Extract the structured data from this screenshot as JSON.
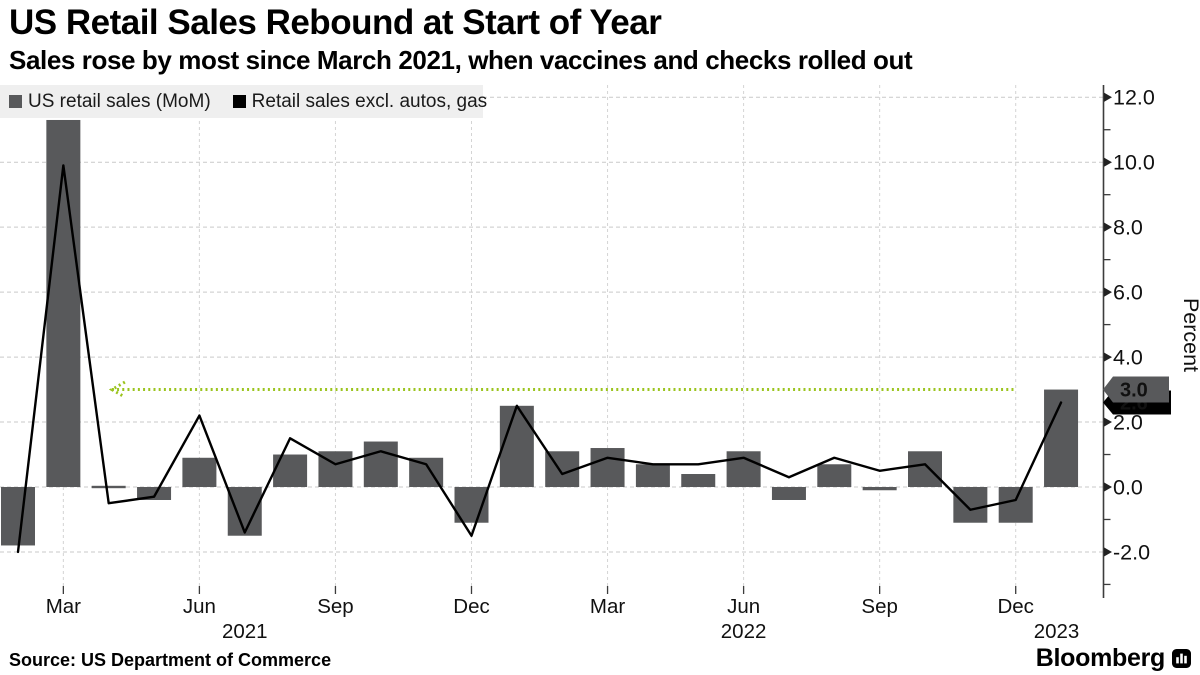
{
  "header": {
    "title": "US Retail Sales Rebound at Start of Year",
    "subtitle": "Sales rose by most since March 2021, when vaccines and checks rolled out"
  },
  "source": {
    "text": "Source: US Department of Commerce"
  },
  "brand": {
    "name": "Bloomberg"
  },
  "chart_data": {
    "type": "combo",
    "title": "US Retail Sales Rebound at Start of Year",
    "subtitle": "Sales rose by most since March 2021, when vaccines and checks rolled out",
    "x": [
      "Feb 2021",
      "Mar 2021",
      "Apr 2021",
      "May 2021",
      "Jun 2021",
      "Jul 2021",
      "Aug 2021",
      "Sep 2021",
      "Oct 2021",
      "Nov 2021",
      "Dec 2021",
      "Jan 2022",
      "Feb 2022",
      "Mar 2022",
      "Apr 2022",
      "May 2022",
      "Jun 2022",
      "Jul 2022",
      "Aug 2022",
      "Sep 2022",
      "Oct 2022",
      "Nov 2022",
      "Dec 2022",
      "Jan 2023"
    ],
    "series": [
      {
        "name": "US retail sales (MoM)",
        "type": "bar",
        "color": "#58595b",
        "values": [
          -1.8,
          11.3,
          0.0,
          -0.4,
          0.9,
          -1.5,
          1.0,
          1.1,
          1.4,
          0.9,
          -1.1,
          2.5,
          1.1,
          1.2,
          0.7,
          0.4,
          1.1,
          -0.4,
          0.7,
          -0.1,
          1.1,
          -1.1,
          -1.1,
          3.0
        ]
      },
      {
        "name": "Retail sales excl. autos, gas",
        "type": "line",
        "color": "#000000",
        "values": [
          -2.0,
          9.9,
          -0.5,
          -0.3,
          2.2,
          -1.4,
          1.5,
          0.7,
          1.1,
          0.7,
          -1.5,
          2.5,
          0.4,
          0.9,
          0.7,
          0.7,
          0.9,
          0.3,
          0.9,
          0.5,
          0.7,
          -0.7,
          -0.4,
          2.6
        ]
      }
    ],
    "ylabel": "Percent",
    "ylim": [
      -3.2,
      12.4
    ],
    "grid": true,
    "legend_position": "top-left",
    "y_axis": {
      "major": [
        {
          "value": -2,
          "label": "-2.0"
        },
        {
          "value": 0,
          "label": "0.0"
        },
        {
          "value": 2,
          "label": "2.0"
        },
        {
          "value": 4,
          "label": "4.0"
        },
        {
          "value": 6,
          "label": "6.0"
        },
        {
          "value": 8,
          "label": "8.0"
        },
        {
          "value": 10,
          "label": "10.0"
        },
        {
          "value": 12,
          "label": "12.0"
        }
      ],
      "minor_values": [
        -3,
        -1,
        1,
        3,
        5,
        7,
        9,
        11
      ]
    },
    "x_axis": {
      "ticks": [
        {
          "index": 1,
          "label": "Mar"
        },
        {
          "index": 4,
          "label": "Jun"
        },
        {
          "index": 7,
          "label": "Sep"
        },
        {
          "index": 10,
          "label": "Dec"
        },
        {
          "index": 13,
          "label": "Mar"
        },
        {
          "index": 16,
          "label": "Jun"
        },
        {
          "index": 19,
          "label": "Sep"
        },
        {
          "index": 22,
          "label": "Dec"
        }
      ],
      "years": [
        {
          "label": "2021",
          "center_index": 5.0
        },
        {
          "label": "2022",
          "center_index": 16.0
        },
        {
          "label": "2023",
          "center_index": 22.9
        }
      ]
    },
    "annotation": {
      "type": "dotted-reference-arrow",
      "value": 3.0,
      "from_index": 2.07,
      "to_index": 22.0,
      "color": "#9bc41e",
      "style": "dotted",
      "arrow_direction": "left"
    },
    "end_labels": [
      {
        "text": "3.0",
        "value": 3.0,
        "bg": "#58595b",
        "fg": "#ffffff",
        "w": 66,
        "h": 26
      },
      {
        "text": "2.6",
        "value": 2.6,
        "bg": "#000000",
        "fg": "#ffffff",
        "w": 68,
        "h": 24
      }
    ]
  }
}
